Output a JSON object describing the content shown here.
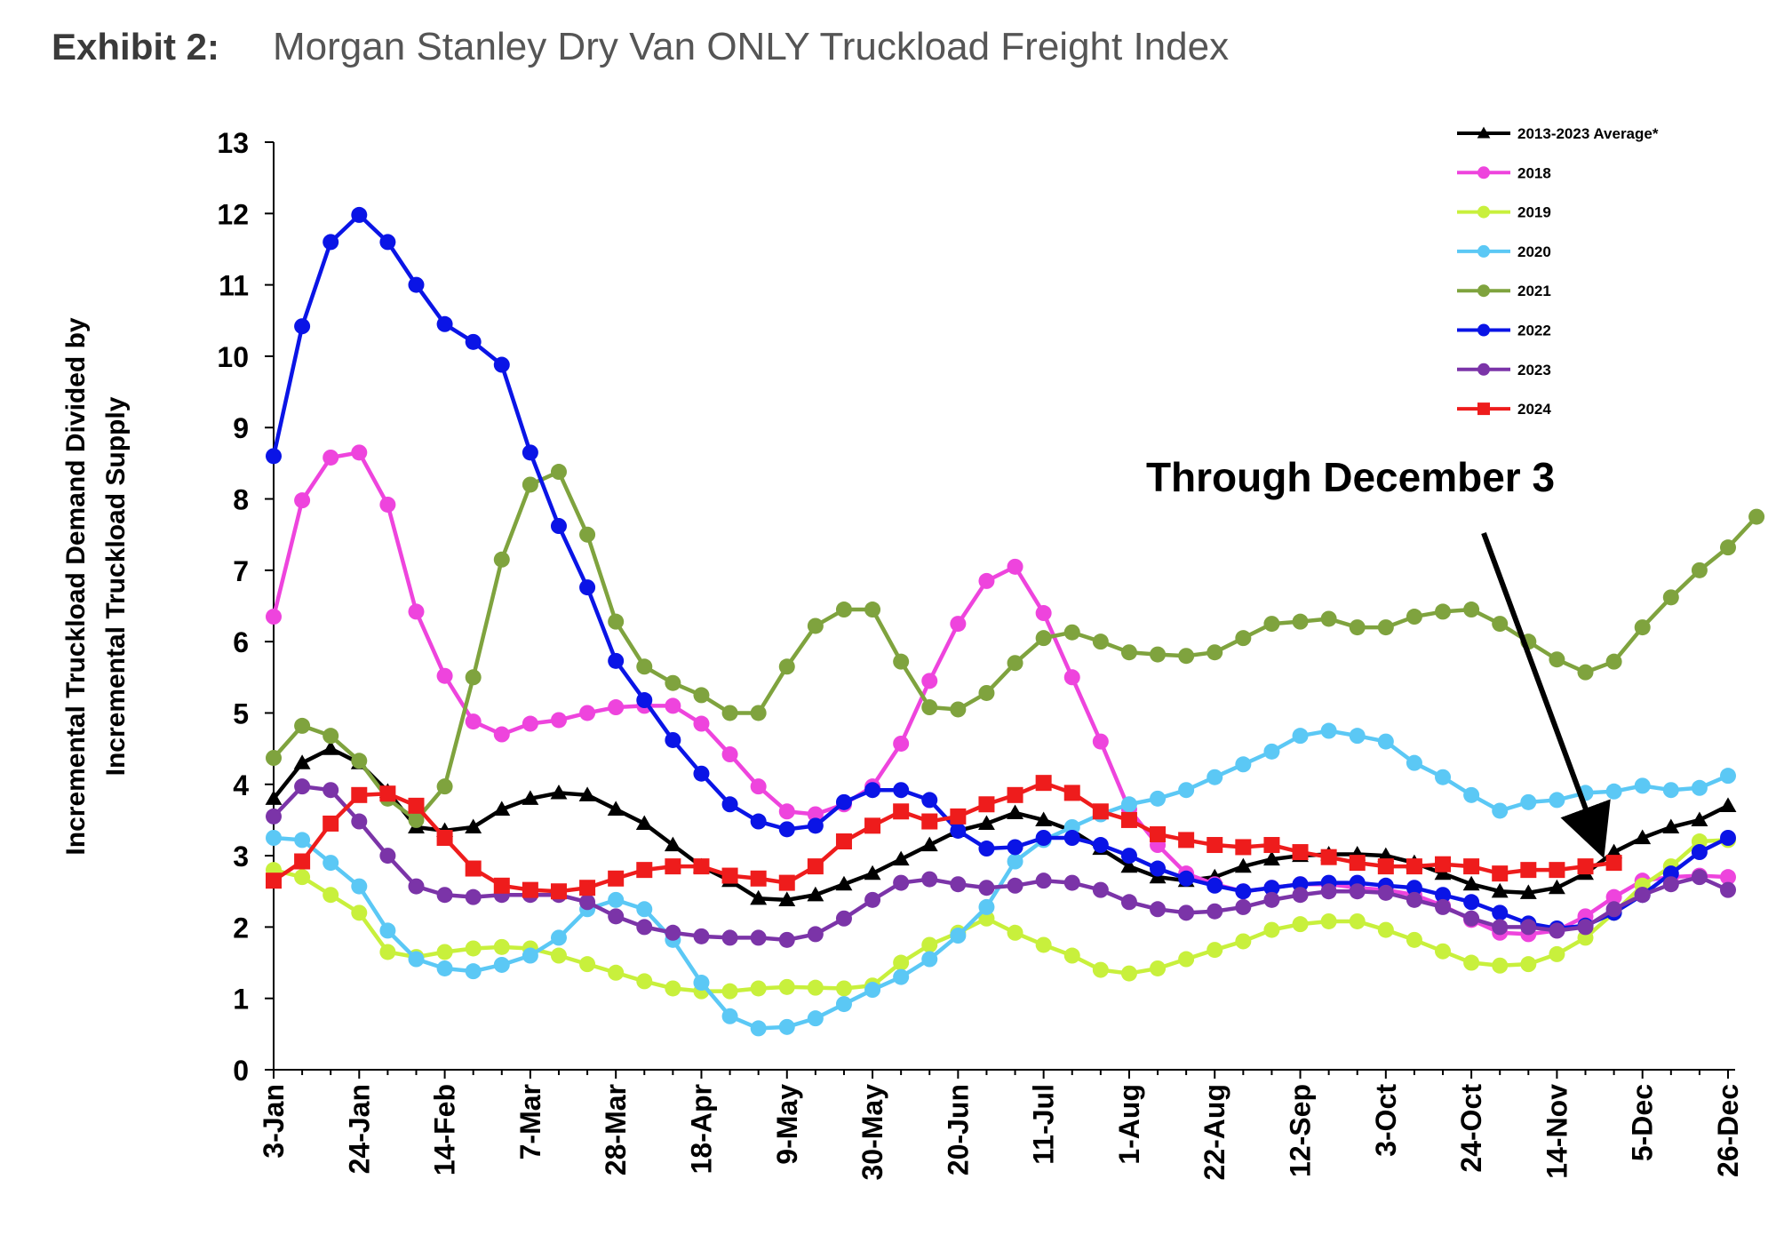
{
  "header": {
    "exhibit": "Exhibit 2:",
    "title": "Morgan Stanley Dry Van ONLY Truckload Freight Index"
  },
  "chart_data": {
    "type": "line",
    "title": "Morgan Stanley Dry Van ONLY Truckload Freight Index",
    "ylabel_line1": "Incremental Truckload Demand Divided by",
    "ylabel_line2": "Incremental Truckload Supply",
    "xlabel": "",
    "ylim": [
      0,
      13
    ],
    "yticks": [
      0,
      1,
      2,
      3,
      4,
      5,
      6,
      7,
      8,
      9,
      10,
      11,
      12,
      13
    ],
    "x_tick_labels": [
      "3-Jan",
      "24-Jan",
      "14-Feb",
      "7-Mar",
      "28-Mar",
      "18-Apr",
      "9-May",
      "30-May",
      "20-Jun",
      "11-Jul",
      "1-Aug",
      "22-Aug",
      "12-Sep",
      "3-Oct",
      "24-Oct",
      "14-Nov",
      "5-Dec",
      "26-Dec"
    ],
    "weeks": 52,
    "grid": false,
    "legend_position": "top-right",
    "annotation": "Through December 3",
    "series": [
      {
        "name": "2013-2023 Average*",
        "color": "#000000",
        "marker": "triangle",
        "values": [
          3.8,
          4.3,
          4.5,
          4.3,
          3.9,
          3.4,
          3.35,
          3.4,
          3.65,
          3.8,
          3.88,
          3.85,
          3.65,
          3.45,
          3.15,
          2.85,
          2.65,
          2.4,
          2.38,
          2.45,
          2.6,
          2.75,
          2.95,
          3.15,
          3.35,
          3.45,
          3.6,
          3.5,
          3.35,
          3.1,
          2.85,
          2.7,
          2.65,
          2.7,
          2.85,
          2.95,
          3.0,
          3.02,
          3.02,
          3.0,
          2.9,
          2.75,
          2.6,
          2.5,
          2.48,
          2.55,
          2.75,
          3.05,
          3.25,
          3.4,
          3.5,
          3.7
        ]
      },
      {
        "name": "2018",
        "color": "#ee44dd",
        "marker": "circle",
        "values": [
          6.35,
          7.98,
          8.58,
          8.65,
          7.92,
          6.42,
          5.52,
          4.88,
          4.7,
          4.85,
          4.9,
          5.0,
          5.08,
          5.1,
          5.1,
          4.85,
          4.42,
          3.97,
          3.62,
          3.58,
          3.72,
          3.97,
          4.57,
          5.45,
          6.25,
          6.85,
          7.05,
          6.4,
          5.5,
          4.6,
          3.65,
          3.15,
          2.75,
          2.6,
          2.5,
          2.55,
          2.6,
          2.6,
          2.55,
          2.52,
          2.45,
          2.3,
          2.1,
          1.92,
          1.9,
          1.95,
          2.15,
          2.42,
          2.65,
          2.7,
          2.72,
          2.7
        ]
      },
      {
        "name": "2019",
        "color": "#c8f03c",
        "marker": "circle",
        "values": [
          2.8,
          2.7,
          2.45,
          2.2,
          1.65,
          1.58,
          1.65,
          1.7,
          1.72,
          1.7,
          1.6,
          1.48,
          1.36,
          1.24,
          1.14,
          1.1,
          1.1,
          1.14,
          1.16,
          1.15,
          1.14,
          1.18,
          1.5,
          1.75,
          1.92,
          2.12,
          1.92,
          1.75,
          1.6,
          1.4,
          1.35,
          1.42,
          1.55,
          1.68,
          1.8,
          1.96,
          2.04,
          2.08,
          2.08,
          1.96,
          1.82,
          1.66,
          1.5,
          1.46,
          1.48,
          1.62,
          1.85,
          2.2,
          2.58,
          2.85,
          3.2,
          3.22
        ]
      },
      {
        "name": "2020",
        "color": "#5bc8f5",
        "marker": "circle",
        "values": [
          3.25,
          3.22,
          2.9,
          2.57,
          1.95,
          1.55,
          1.42,
          1.38,
          1.47,
          1.6,
          1.85,
          2.25,
          2.38,
          2.25,
          1.82,
          1.22,
          0.75,
          0.58,
          0.6,
          0.72,
          0.92,
          1.12,
          1.3,
          1.55,
          1.88,
          2.28,
          2.92,
          3.22,
          3.4,
          3.58,
          3.72,
          3.8,
          3.92,
          4.1,
          4.28,
          4.46,
          4.68,
          4.75,
          4.68,
          4.6,
          4.3,
          4.1,
          3.85,
          3.63,
          3.75,
          3.78,
          3.88,
          3.9,
          3.98,
          3.92,
          3.95,
          4.12
        ]
      },
      {
        "name": "2021",
        "color": "#7fa33e",
        "marker": "circle",
        "values": [
          4.37,
          4.82,
          4.68,
          4.33,
          3.8,
          3.5,
          3.97,
          5.5,
          7.15,
          8.2,
          8.38,
          7.5,
          6.28,
          5.65,
          5.42,
          5.25,
          5.0,
          5.0,
          5.65,
          6.22,
          6.45,
          6.45,
          5.72,
          5.08,
          5.05,
          5.28,
          5.7,
          6.05,
          6.13,
          6.0,
          5.85,
          5.82,
          5.8,
          5.85,
          6.05,
          6.25,
          6.28,
          6.32,
          6.2,
          6.2,
          6.35,
          6.42,
          6.45,
          6.25,
          6.0,
          5.75,
          5.57,
          5.72,
          6.2,
          6.62,
          7.0,
          7.32,
          7.75
        ]
      },
      {
        "name": "2022",
        "color": "#0a14e6",
        "marker": "circle",
        "values": [
          8.6,
          10.42,
          11.6,
          11.98,
          11.6,
          11.0,
          10.45,
          10.2,
          9.88,
          8.65,
          7.62,
          6.76,
          5.73,
          5.18,
          4.62,
          4.15,
          3.72,
          3.48,
          3.37,
          3.42,
          3.75,
          3.92,
          3.92,
          3.78,
          3.35,
          3.1,
          3.12,
          3.25,
          3.25,
          3.15,
          3.0,
          2.82,
          2.68,
          2.58,
          2.5,
          2.55,
          2.6,
          2.62,
          2.62,
          2.58,
          2.55,
          2.45,
          2.35,
          2.2,
          2.05,
          1.98,
          2.02,
          2.2,
          2.45,
          2.75,
          3.05,
          3.25
        ]
      },
      {
        "name": "2023",
        "color": "#7b34a8",
        "marker": "circle",
        "values": [
          3.55,
          3.97,
          3.92,
          3.48,
          3.0,
          2.57,
          2.45,
          2.42,
          2.45,
          2.45,
          2.45,
          2.35,
          2.15,
          2.0,
          1.92,
          1.87,
          1.85,
          1.85,
          1.82,
          1.9,
          2.12,
          2.38,
          2.62,
          2.67,
          2.6,
          2.55,
          2.58,
          2.65,
          2.62,
          2.52,
          2.35,
          2.25,
          2.2,
          2.22,
          2.28,
          2.38,
          2.45,
          2.5,
          2.5,
          2.48,
          2.38,
          2.28,
          2.12,
          2.0,
          2.0,
          1.95,
          2.0,
          2.25,
          2.45,
          2.6,
          2.7,
          2.52
        ]
      },
      {
        "name": "2024",
        "color": "#ee1c1c",
        "marker": "square",
        "values": [
          2.65,
          2.92,
          3.45,
          3.85,
          3.87,
          3.7,
          3.25,
          2.82,
          2.58,
          2.52,
          2.5,
          2.55,
          2.68,
          2.8,
          2.85,
          2.85,
          2.72,
          2.68,
          2.62,
          2.85,
          3.2,
          3.42,
          3.62,
          3.48,
          3.55,
          3.72,
          3.85,
          4.02,
          3.88,
          3.62,
          3.5,
          3.3,
          3.22,
          3.15,
          3.12,
          3.15,
          3.05,
          2.98,
          2.9,
          2.85,
          2.85,
          2.88,
          2.85,
          2.75,
          2.8,
          2.8,
          2.85,
          2.9
        ]
      }
    ]
  }
}
